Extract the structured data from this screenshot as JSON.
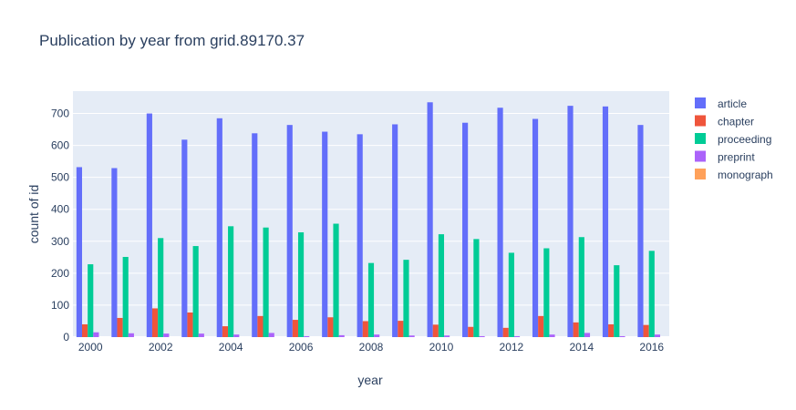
{
  "chart_data": {
    "type": "bar",
    "title": "Publication by year from grid.89170.37",
    "xlabel": "year",
    "ylabel": "count of id",
    "ylim": [
      0,
      770
    ],
    "yticks": [
      0,
      100,
      200,
      300,
      400,
      500,
      600,
      700
    ],
    "categories": [
      2000,
      2001,
      2002,
      2003,
      2004,
      2005,
      2006,
      2007,
      2008,
      2009,
      2010,
      2011,
      2012,
      2013,
      2014,
      2015,
      2016
    ],
    "xtick_labels": [
      "2000",
      "2002",
      "2004",
      "2006",
      "2008",
      "2010",
      "2012",
      "2014",
      "2016"
    ],
    "xtick_values": [
      2000,
      2002,
      2004,
      2006,
      2008,
      2010,
      2012,
      2014,
      2016
    ],
    "grid": true,
    "legend_position": "right",
    "colors": {
      "plot_background": "#e5ecf6",
      "grid": "#ffffff"
    },
    "series": [
      {
        "name": "article",
        "color": "#636efa",
        "values": [
          532,
          529,
          700,
          618,
          685,
          638,
          664,
          643,
          635,
          666,
          735,
          671,
          718,
          683,
          724,
          722,
          664
        ]
      },
      {
        "name": "chapter",
        "color": "#ef553b",
        "values": [
          40,
          60,
          90,
          77,
          34,
          66,
          54,
          62,
          50,
          51,
          39,
          32,
          29,
          66,
          46,
          40,
          38
        ]
      },
      {
        "name": "proceeding",
        "color": "#00cc96",
        "values": [
          228,
          251,
          310,
          285,
          347,
          343,
          328,
          355,
          232,
          242,
          322,
          307,
          264,
          278,
          313,
          225,
          270
        ]
      },
      {
        "name": "preprint",
        "color": "#ab63fa",
        "values": [
          15,
          12,
          11,
          11,
          8,
          13,
          3,
          6,
          8,
          5,
          5,
          3,
          3,
          8,
          13,
          3,
          8
        ]
      },
      {
        "name": "monograph",
        "color": "#ffa15a",
        "values": [
          0,
          0,
          0,
          0,
          0,
          0,
          0,
          0,
          0,
          0,
          0,
          0,
          0,
          0,
          0,
          0,
          0
        ]
      }
    ]
  }
}
